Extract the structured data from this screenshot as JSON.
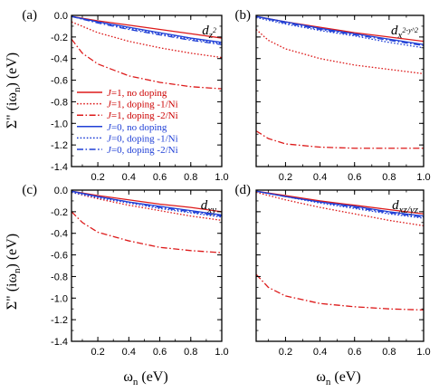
{
  "figure": {
    "ylabel": "Σ\" (iω_n) (eV)",
    "xlabel": "ω_n (eV)"
  },
  "colors": {
    "red": "#dd1a1a",
    "blue": "#1f3fd6"
  },
  "legend": [
    {
      "label": "J=1, no doping",
      "color": "red",
      "dash": "solid"
    },
    {
      "label": "J=1, doping -1/Ni",
      "color": "red",
      "dash": "dotted"
    },
    {
      "label": "J=1, doping -2/Ni",
      "color": "red",
      "dash": "dashdot"
    },
    {
      "label": "J=0, no doping",
      "color": "blue",
      "dash": "solid"
    },
    {
      "label": "J=0, doping -1/Ni",
      "color": "blue",
      "dash": "dotted"
    },
    {
      "label": "J=0, doping -2/Ni",
      "color": "blue",
      "dash": "dashdot"
    }
  ],
  "chart_data": [
    {
      "type": "line",
      "panel": "(a)",
      "orbital": "d_{z^2}",
      "xlim": [
        0.03,
        1.0
      ],
      "ylim": [
        -1.4,
        0.0
      ],
      "xticks": [
        0.2,
        0.4,
        0.6,
        0.8,
        1.0
      ],
      "yticks": [
        0.0,
        -0.2,
        -0.4,
        -0.6,
        -0.8,
        -1.0,
        -1.2,
        -1.4
      ],
      "series": [
        {
          "name": "J=1, no doping",
          "x": [
            0.03,
            0.2,
            0.4,
            0.6,
            0.8,
            1.0
          ],
          "y": [
            -0.01,
            -0.05,
            -0.09,
            -0.13,
            -0.17,
            -0.21
          ]
        },
        {
          "name": "J=1, doping -1/Ni",
          "x": [
            0.03,
            0.2,
            0.4,
            0.6,
            0.8,
            1.0
          ],
          "y": [
            -0.06,
            -0.16,
            -0.24,
            -0.3,
            -0.35,
            -0.39
          ]
        },
        {
          "name": "J=1, doping -2/Ni",
          "x": [
            0.03,
            0.1,
            0.2,
            0.4,
            0.6,
            0.8,
            1.0
          ],
          "y": [
            -0.22,
            -0.35,
            -0.45,
            -0.56,
            -0.62,
            -0.66,
            -0.68
          ]
        },
        {
          "name": "J=0, no doping",
          "x": [
            0.03,
            0.2,
            0.4,
            0.6,
            0.8,
            1.0
          ],
          "y": [
            -0.01,
            -0.06,
            -0.11,
            -0.16,
            -0.21,
            -0.25
          ]
        },
        {
          "name": "J=0, doping -1/Ni",
          "x": [
            0.03,
            0.2,
            0.4,
            0.6,
            0.8,
            1.0
          ],
          "y": [
            -0.01,
            -0.06,
            -0.12,
            -0.17,
            -0.22,
            -0.26
          ]
        },
        {
          "name": "J=0, doping -2/Ni",
          "x": [
            0.03,
            0.2,
            0.4,
            0.6,
            0.8,
            1.0
          ],
          "y": [
            -0.01,
            -0.07,
            -0.13,
            -0.18,
            -0.23,
            -0.27
          ]
        }
      ]
    },
    {
      "type": "line",
      "panel": "(b)",
      "orbital": "d_{x^2-y^2}",
      "xlim": [
        0.03,
        1.0
      ],
      "ylim": [
        -1.4,
        0.0
      ],
      "xticks": [
        0.2,
        0.4,
        0.6,
        0.8,
        1.0
      ],
      "yticks": [
        0.0,
        -0.2,
        -0.4,
        -0.6,
        -0.8,
        -1.0,
        -1.2,
        -1.4
      ],
      "series": [
        {
          "name": "J=1, no doping",
          "x": [
            0.03,
            0.2,
            0.4,
            0.6,
            0.8,
            1.0
          ],
          "y": [
            -0.01,
            -0.06,
            -0.11,
            -0.16,
            -0.2,
            -0.24
          ]
        },
        {
          "name": "J=1, doping -1/Ni",
          "x": [
            0.03,
            0.1,
            0.2,
            0.4,
            0.6,
            0.8,
            1.0
          ],
          "y": [
            -0.13,
            -0.23,
            -0.31,
            -0.4,
            -0.46,
            -0.5,
            -0.54
          ]
        },
        {
          "name": "J=1, doping -2/Ni",
          "x": [
            0.03,
            0.1,
            0.2,
            0.4,
            0.6,
            0.8,
            1.0
          ],
          "y": [
            -1.07,
            -1.14,
            -1.19,
            -1.22,
            -1.23,
            -1.23,
            -1.23
          ]
        },
        {
          "name": "J=0, no doping",
          "x": [
            0.03,
            0.2,
            0.4,
            0.6,
            0.8,
            1.0
          ],
          "y": [
            -0.01,
            -0.06,
            -0.12,
            -0.17,
            -0.22,
            -0.27
          ]
        },
        {
          "name": "J=0, doping -1/Ni",
          "x": [
            0.03,
            0.2,
            0.4,
            0.6,
            0.8,
            1.0
          ],
          "y": [
            -0.02,
            -0.08,
            -0.14,
            -0.19,
            -0.25,
            -0.3
          ]
        },
        {
          "name": "J=0, doping -2/Ni",
          "x": [
            0.03,
            0.2,
            0.4,
            0.6,
            0.8,
            1.0
          ],
          "y": [
            -0.01,
            -0.07,
            -0.13,
            -0.18,
            -0.23,
            -0.28
          ]
        }
      ]
    },
    {
      "type": "line",
      "panel": "(c)",
      "orbital": "d_{xy}",
      "xlim": [
        0.03,
        1.0
      ],
      "ylim": [
        -1.4,
        0.0
      ],
      "xticks": [
        0.2,
        0.4,
        0.6,
        0.8,
        1.0
      ],
      "yticks": [
        0.0,
        -0.2,
        -0.4,
        -0.6,
        -0.8,
        -1.0,
        -1.2,
        -1.4
      ],
      "series": [
        {
          "name": "J=1, no doping",
          "x": [
            0.03,
            0.2,
            0.4,
            0.6,
            0.8,
            1.0
          ],
          "y": [
            -0.01,
            -0.05,
            -0.09,
            -0.13,
            -0.16,
            -0.2
          ]
        },
        {
          "name": "J=1, doping -1/Ni",
          "x": [
            0.03,
            0.2,
            0.4,
            0.6,
            0.8,
            1.0
          ],
          "y": [
            -0.02,
            -0.08,
            -0.14,
            -0.19,
            -0.24,
            -0.28
          ]
        },
        {
          "name": "J=1, doping -2/Ni",
          "x": [
            0.03,
            0.1,
            0.2,
            0.4,
            0.6,
            0.8,
            1.0
          ],
          "y": [
            -0.2,
            -0.3,
            -0.39,
            -0.47,
            -0.53,
            -0.56,
            -0.58
          ]
        },
        {
          "name": "J=0, no doping",
          "x": [
            0.03,
            0.2,
            0.4,
            0.6,
            0.8,
            1.0
          ],
          "y": [
            -0.01,
            -0.06,
            -0.11,
            -0.15,
            -0.19,
            -0.23
          ]
        },
        {
          "name": "J=0, doping -1/Ni",
          "x": [
            0.03,
            0.2,
            0.4,
            0.6,
            0.8,
            1.0
          ],
          "y": [
            -0.02,
            -0.07,
            -0.12,
            -0.17,
            -0.21,
            -0.25
          ]
        },
        {
          "name": "J=0, doping -2/Ni",
          "x": [
            0.03,
            0.2,
            0.4,
            0.6,
            0.8,
            1.0
          ],
          "y": [
            -0.01,
            -0.06,
            -0.11,
            -0.16,
            -0.2,
            -0.24
          ]
        }
      ]
    },
    {
      "type": "line",
      "panel": "(d)",
      "orbital": "d_{xz/yz}",
      "xlim": [
        0.03,
        1.0
      ],
      "ylim": [
        -1.4,
        0.0
      ],
      "xticks": [
        0.2,
        0.4,
        0.6,
        0.8,
        1.0
      ],
      "yticks": [
        0.0,
        -0.2,
        -0.4,
        -0.6,
        -0.8,
        -1.0,
        -1.2,
        -1.4
      ],
      "series": [
        {
          "name": "J=1, no doping",
          "x": [
            0.03,
            0.2,
            0.4,
            0.6,
            0.8,
            1.0
          ],
          "y": [
            -0.01,
            -0.05,
            -0.1,
            -0.14,
            -0.18,
            -0.22
          ]
        },
        {
          "name": "J=1, doping -1/Ni",
          "x": [
            0.03,
            0.2,
            0.4,
            0.6,
            0.8,
            1.0
          ],
          "y": [
            -0.02,
            -0.09,
            -0.16,
            -0.22,
            -0.28,
            -0.33
          ]
        },
        {
          "name": "J=1, doping -2/Ni",
          "x": [
            0.03,
            0.1,
            0.2,
            0.4,
            0.6,
            0.8,
            1.0
          ],
          "y": [
            -0.78,
            -0.9,
            -0.98,
            -1.05,
            -1.08,
            -1.1,
            -1.11
          ]
        },
        {
          "name": "J=0, no doping",
          "x": [
            0.03,
            0.2,
            0.4,
            0.6,
            0.8,
            1.0
          ],
          "y": [
            -0.01,
            -0.06,
            -0.11,
            -0.15,
            -0.2,
            -0.24
          ]
        },
        {
          "name": "J=0, doping -1/Ni",
          "x": [
            0.03,
            0.2,
            0.4,
            0.6,
            0.8,
            1.0
          ],
          "y": [
            -0.01,
            -0.06,
            -0.12,
            -0.17,
            -0.22,
            -0.26
          ]
        },
        {
          "name": "J=0, doping -2/Ni",
          "x": [
            0.03,
            0.2,
            0.4,
            0.6,
            0.8,
            1.0
          ],
          "y": [
            -0.01,
            -0.06,
            -0.11,
            -0.16,
            -0.21,
            -0.25
          ]
        }
      ]
    }
  ]
}
